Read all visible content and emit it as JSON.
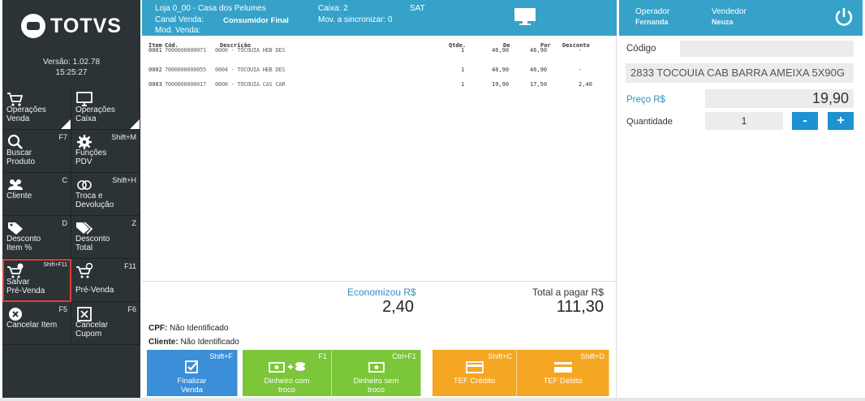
{
  "sidebar": {
    "logo_text": "TOTVS",
    "version_label": "Versão: 1.02.78",
    "time": "15:25:27",
    "buttons": [
      {
        "label": "Operações\nVenda",
        "shortcut": "",
        "icon": "cart-icon"
      },
      {
        "label": "Operações\nCaixa",
        "shortcut": "",
        "icon": "monitor-icon"
      },
      {
        "label": "Buscar\nProduto",
        "shortcut": "F7",
        "icon": "search-icon"
      },
      {
        "label": "Funções\nPDV",
        "shortcut": "Shift+M",
        "icon": "gear-icon"
      },
      {
        "label": "Cliente",
        "shortcut": "C",
        "icon": "users-icon"
      },
      {
        "label": "Troca e\nDevolução",
        "shortcut": "Shift+H",
        "icon": "exchange-icon"
      },
      {
        "label": "Desconto\nItem %",
        "shortcut": "D",
        "icon": "tag-icon"
      },
      {
        "label": "Desconto\nTotal",
        "shortcut": "Z",
        "icon": "tags-icon"
      },
      {
        "label": "Salvar\nPré-Venda",
        "shortcut": "Shift+F11",
        "icon": "cart-save-icon"
      },
      {
        "label": "Pré-Venda",
        "shortcut": "F11",
        "icon": "cart-clock-icon"
      },
      {
        "label": "Cancelar Item",
        "shortcut": "F5",
        "icon": "close-circle-icon"
      },
      {
        "label": "Cancelar\nCupom",
        "shortcut": "F6",
        "icon": "close-square-icon"
      }
    ]
  },
  "topbar": {
    "loja": "Loja 0_00 - Casa dos Pelumes",
    "canal_label": "Canal Venda:",
    "canal_value": "Consumidor Final",
    "mod_label": "Mod. Venda:",
    "caixa": "Caixa: 2",
    "sync": "Mov. a sincronizar: 0",
    "sat": "SAT",
    "monitor_icon": "monitor-icon"
  },
  "table": {
    "headers": {
      "item": "Item",
      "cod": "Cód.",
      "desc": "Descrição",
      "qtde": "Qtde.",
      "de": "De",
      "por": "Por",
      "desconto": "Desconto"
    },
    "rows": [
      {
        "item": "0001",
        "cod": "7000000000071",
        "desc": "0000 - TOCOUIA HEB DES",
        "qtde": "1",
        "de": "46,90",
        "por": "46,90",
        "desconto": "-"
      },
      {
        "item": "0002",
        "cod": "7000000000055",
        "desc": "0004 - TOCOUIA HEB DES",
        "qtde": "1",
        "de": "46,90",
        "por": "46,90",
        "desconto": "-"
      },
      {
        "item": "0003",
        "cod": "7000000000017",
        "desc": "0000 - TOCOUIA CAS CAR",
        "qtde": "1",
        "de": "19,90",
        "por": "17,50",
        "desconto": "2,40"
      }
    ]
  },
  "summary": {
    "economizou_label": "Economizou R$",
    "economizou_value": "2,40",
    "total_label": "Total a pagar R$",
    "total_value": "111,30"
  },
  "customer": {
    "cpf_label": "CPF:",
    "cpf_value": "Não Identificado",
    "cliente_label": "Cliente:",
    "cliente_value": "Não Identificado"
  },
  "payments": [
    {
      "label": "Finalizar\nVenda",
      "shortcut": "Shift+F",
      "color": "#3b8ed8",
      "icon": "check-icon"
    },
    {
      "label": "Dinheiro com\ntroco",
      "shortcut": "F1",
      "color": "#7cc63a",
      "icon": "cash-coins-icon"
    },
    {
      "label": "Dinheiro sem\ntroco",
      "shortcut": "Ctrl+F1",
      "color": "#7cc63a",
      "icon": "cash-icon"
    },
    {
      "label": "TEF Crédito",
      "shortcut": "Shift+C",
      "color": "#f5a623",
      "icon": "credit-card-icon"
    },
    {
      "label": "TEF Débito",
      "shortcut": "Shift+D",
      "color": "#f5a623",
      "icon": "debit-card-icon"
    }
  ],
  "right": {
    "operador_label": "Operador",
    "operador_value": "Fernanda",
    "vendedor_label": "Vendedor",
    "vendedor_value": "Neuza",
    "codigo_label": "Código",
    "codigo_value": "",
    "product_desc": "2833 TOCOUIA CAB BARRA AMEIXA 5X90G",
    "preco_label": "Preço R$",
    "preco_value": "19,90",
    "quantidade_label": "Quantidade",
    "quantidade_value": "1",
    "minus_label": "-",
    "plus_label": "+"
  }
}
